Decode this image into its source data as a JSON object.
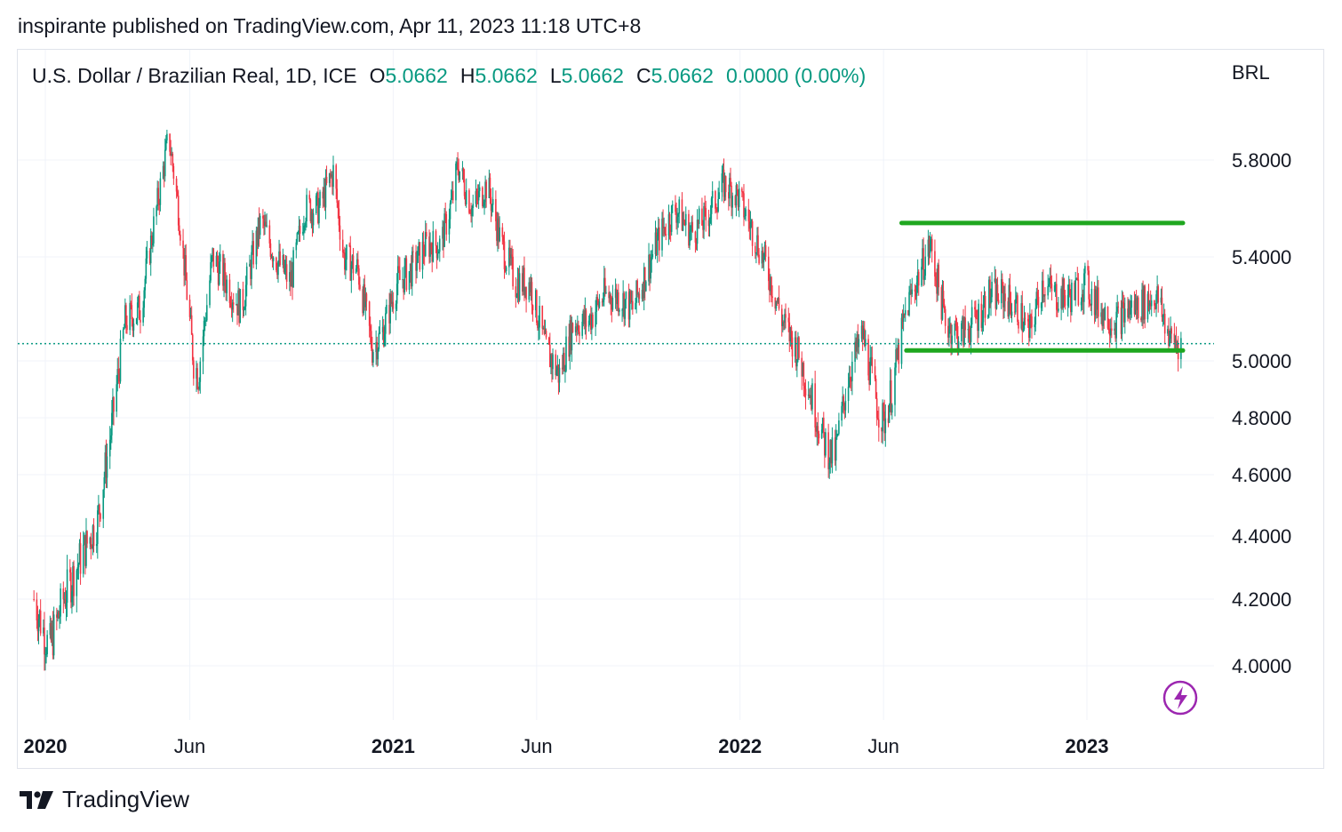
{
  "header": {
    "published_text": "inspirante published on TradingView.com, Apr 11, 2023 11:18 UTC+8"
  },
  "legend": {
    "symbol": "U.S. Dollar / Brazilian Real, 1D, ICE",
    "open_label": "O",
    "open": "5.0662",
    "high_label": "H",
    "high": "5.0662",
    "low_label": "L",
    "low": "5.0662",
    "close_label": "C",
    "close": "5.0662",
    "change": "0.0000 (0.00%)"
  },
  "footer": {
    "brand": "TradingView",
    "logo_icon": "tradingview-logo-icon"
  },
  "colors": {
    "up": "#089981",
    "down": "#f23645",
    "channel": "#1fa71f",
    "grid": "#f0f3fa",
    "accent": "#9c27b0"
  },
  "chart_data": {
    "type": "candlestick",
    "title": "U.S. Dollar / Brazilian Real, 1D, ICE",
    "currency_label": "BRL",
    "y_ticks": [
      "5.8000",
      "5.4000",
      "5.0000",
      "4.8000",
      "4.6000",
      "4.4000",
      "4.2000",
      "4.0000"
    ],
    "x_ticks": [
      {
        "label": "2020",
        "date": "2020-01-01",
        "bold": true
      },
      {
        "label": "Jun",
        "date": "2020-06-01",
        "bold": false
      },
      {
        "label": "2021",
        "date": "2021-01-01",
        "bold": true
      },
      {
        "label": "Jun",
        "date": "2021-06-01",
        "bold": false
      },
      {
        "label": "2022",
        "date": "2022-01-01",
        "bold": true
      },
      {
        "label": "Jun",
        "date": "2022-06-01",
        "bold": false
      },
      {
        "label": "2023",
        "date": "2023-01-01",
        "bold": true
      }
    ],
    "last_price": 5.0662,
    "price_path": [
      [
        "2019-12-20",
        4.2
      ],
      [
        "2020-01-05",
        4.05
      ],
      [
        "2020-01-20",
        4.2
      ],
      [
        "2020-02-10",
        4.35
      ],
      [
        "2020-02-25",
        4.45
      ],
      [
        "2020-03-10",
        4.75
      ],
      [
        "2020-03-25",
        5.15
      ],
      [
        "2020-04-10",
        5.2
      ],
      [
        "2020-04-25",
        5.55
      ],
      [
        "2020-05-10",
        5.9
      ],
      [
        "2020-05-20",
        5.6
      ],
      [
        "2020-06-05",
        5.0
      ],
      [
        "2020-06-10",
        4.95
      ],
      [
        "2020-06-25",
        5.4
      ],
      [
        "2020-07-10",
        5.3
      ],
      [
        "2020-07-25",
        5.2
      ],
      [
        "2020-08-15",
        5.55
      ],
      [
        "2020-08-30",
        5.4
      ],
      [
        "2020-09-15",
        5.3
      ],
      [
        "2020-09-30",
        5.6
      ],
      [
        "2020-10-15",
        5.6
      ],
      [
        "2020-10-30",
        5.75
      ],
      [
        "2020-11-10",
        5.4
      ],
      [
        "2020-11-25",
        5.35
      ],
      [
        "2020-12-10",
        5.05
      ],
      [
        "2020-12-20",
        5.1
      ],
      [
        "2021-01-05",
        5.3
      ],
      [
        "2021-01-20",
        5.35
      ],
      [
        "2021-02-05",
        5.45
      ],
      [
        "2021-02-20",
        5.45
      ],
      [
        "2021-03-05",
        5.65
      ],
      [
        "2021-03-10",
        5.78
      ],
      [
        "2021-03-25",
        5.6
      ],
      [
        "2021-04-10",
        5.7
      ],
      [
        "2021-04-25",
        5.45
      ],
      [
        "2021-05-10",
        5.3
      ],
      [
        "2021-05-25",
        5.3
      ],
      [
        "2021-06-10",
        5.05
      ],
      [
        "2021-06-25",
        4.95
      ],
      [
        "2021-07-10",
        5.15
      ],
      [
        "2021-07-25",
        5.15
      ],
      [
        "2021-08-10",
        5.25
      ],
      [
        "2021-08-25",
        5.25
      ],
      [
        "2021-09-10",
        5.2
      ],
      [
        "2021-09-25",
        5.35
      ],
      [
        "2021-10-10",
        5.5
      ],
      [
        "2021-10-25",
        5.6
      ],
      [
        "2021-11-10",
        5.5
      ],
      [
        "2021-11-25",
        5.55
      ],
      [
        "2021-12-15",
        5.7
      ],
      [
        "2021-12-30",
        5.65
      ],
      [
        "2022-01-15",
        5.5
      ],
      [
        "2022-01-30",
        5.35
      ],
      [
        "2022-02-15",
        5.15
      ],
      [
        "2022-03-01",
        5.05
      ],
      [
        "2022-03-15",
        4.9
      ],
      [
        "2022-03-30",
        4.72
      ],
      [
        "2022-04-10",
        4.65
      ],
      [
        "2022-04-25",
        4.95
      ],
      [
        "2022-05-10",
        5.1
      ],
      [
        "2022-05-25",
        4.85
      ],
      [
        "2022-06-01",
        4.78
      ],
      [
        "2022-06-10",
        4.9
      ],
      [
        "2022-06-25",
        5.2
      ],
      [
        "2022-07-10",
        5.35
      ],
      [
        "2022-07-20",
        5.45
      ],
      [
        "2022-08-05",
        5.15
      ],
      [
        "2022-08-20",
        5.1
      ],
      [
        "2022-09-05",
        5.15
      ],
      [
        "2022-09-20",
        5.25
      ],
      [
        "2022-10-05",
        5.25
      ],
      [
        "2022-10-20",
        5.2
      ],
      [
        "2022-11-01",
        5.1
      ],
      [
        "2022-11-15",
        5.3
      ],
      [
        "2022-11-30",
        5.25
      ],
      [
        "2022-12-15",
        5.25
      ],
      [
        "2022-12-30",
        5.3
      ],
      [
        "2023-01-15",
        5.2
      ],
      [
        "2023-01-30",
        5.15
      ],
      [
        "2023-02-15",
        5.2
      ],
      [
        "2023-03-01",
        5.22
      ],
      [
        "2023-03-15",
        5.25
      ],
      [
        "2023-03-30",
        5.08
      ],
      [
        "2023-04-10",
        5.07
      ]
    ],
    "channel_lines": [
      {
        "from": "2022-06-20",
        "to": "2023-04-12",
        "value": 5.54
      },
      {
        "from": "2022-06-25",
        "to": "2023-04-12",
        "value": 5.04
      }
    ]
  }
}
